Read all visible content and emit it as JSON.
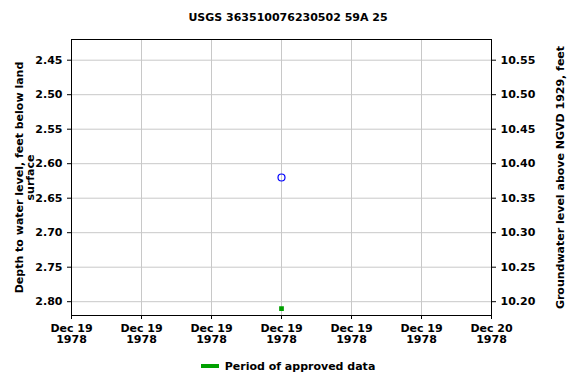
{
  "chart_data": {
    "type": "scatter",
    "title": "USGS 363510076230502 59A 25",
    "ylabel": "Depth to water level, feet below land\nsurface",
    "y2label": "Groundwater level above NGVD 1929, feet",
    "categories": [
      "Dec 19\n1978",
      "Dec 19\n1978",
      "Dec 19\n1978",
      "Dec 19\n1978",
      "Dec 19\n1978",
      "Dec 19\n1978",
      "Dec 20\n1978"
    ],
    "values": [
      null,
      null,
      null,
      2.62,
      null,
      null,
      null
    ],
    "color": "#0000ff",
    "marker": "circle",
    "series": [
      {
        "name": "Period of approved data",
        "color": "#00a000",
        "marker": "square",
        "values": [
          null,
          null,
          null,
          2.81,
          null,
          null,
          null
        ]
      }
    ],
    "ylim": [
      2.42,
      2.82
    ],
    "yticks": [
      2.45,
      {
        "value": 2.5,
        "label": "2.50"
      },
      2.55,
      {
        "value": 2.6,
        "label": "2.60"
      },
      2.65,
      {
        "value": 2.7,
        "label": "2.70"
      },
      2.75,
      {
        "value": 2.8,
        "label": "2.80"
      }
    ],
    "y2lim": [
      10.58,
      10.18
    ],
    "y2ticks": [
      10.55,
      {
        "value": 10.5,
        "label": "10.50"
      },
      10.45,
      {
        "value": 10.4,
        "label": "10.40"
      },
      10.35,
      {
        "value": 10.3,
        "label": "10.30"
      },
      10.25,
      {
        "value": 10.2,
        "label": "10.20"
      }
    ],
    "grid": true,
    "legend": "bottom"
  }
}
